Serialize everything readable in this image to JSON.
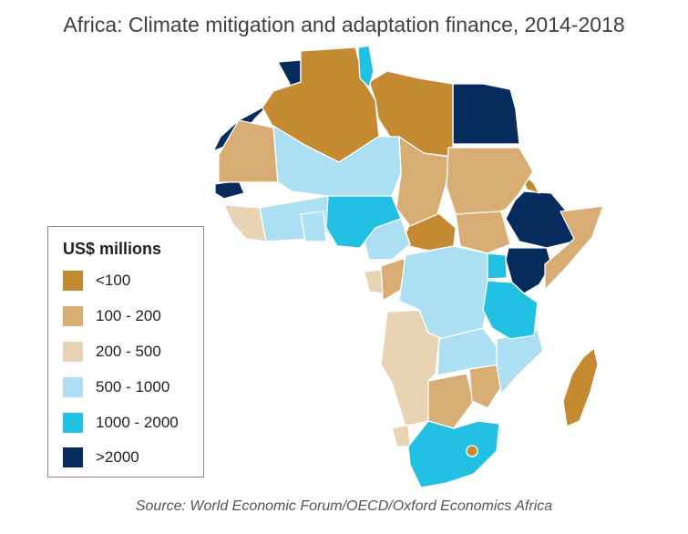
{
  "title": "Africa: Climate mitigation and adaptation finance, 2014-2018",
  "source": "Source: World Economic Forum/OECD/Oxford Economics Africa",
  "legend": {
    "title": "US$ millions",
    "items": [
      {
        "label": "<100",
        "color": "#c48a32"
      },
      {
        "label": "100 - 200",
        "color": "#d8ad73"
      },
      {
        "label": "200 - 500",
        "color": "#e8d3b3"
      },
      {
        "label": "500 - 1000",
        "color": "#addff2"
      },
      {
        "label": "1000 - 2000",
        "color": "#22c0e3"
      },
      {
        "label": ">2000",
        "color": "#062c5e"
      }
    ]
  }
}
